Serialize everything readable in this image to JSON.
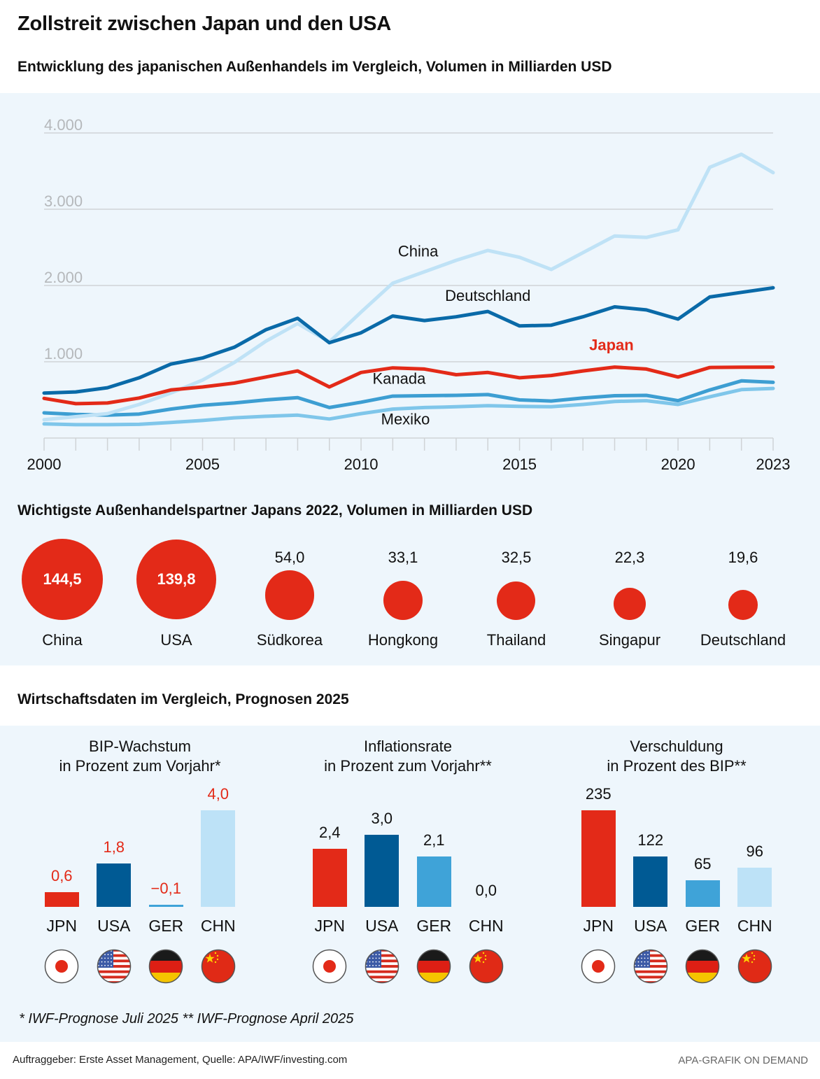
{
  "header": {
    "title": "Zollstreit zwischen Japan und den USA",
    "section1_title": "Entwicklung des japanischen Außenhandels im Vergleich, Volumen in Milliarden USD",
    "section2_title": "Wichtigste Außenhandelspartner Japans 2022, Volumen in Milliarden USD",
    "section3_title": "Wirtschaftsdaten im Vergleich, Prognosen 2025"
  },
  "colors": {
    "red": "#e32a18",
    "dark_blue": "#0a6aa8",
    "mid_blue": "#3d9ed2",
    "light_blue": "#7fc6ea",
    "pale_blue": "#bfe2f6",
    "bar_dark": "#005a94",
    "bar_mid": "#3fa3d8",
    "bar_pale": "#bde2f7",
    "panel_bg": "#eef6fc",
    "grid": "#cfd3d6",
    "axis_label": "#b5b8bb"
  },
  "chart_data": [
    {
      "type": "line",
      "title": "Entwicklung des japanischen Außenhandels im Vergleich, Volumen in Milliarden USD",
      "xlabel": "",
      "ylabel": "",
      "x": [
        2000,
        2001,
        2002,
        2003,
        2004,
        2005,
        2006,
        2007,
        2008,
        2009,
        2010,
        2011,
        2012,
        2013,
        2014,
        2015,
        2016,
        2017,
        2018,
        2019,
        2020,
        2021,
        2022,
        2023
      ],
      "x_tick_labels": [
        "2000",
        "2005",
        "2010",
        "2015",
        "2020",
        "2023"
      ],
      "x_ticks": [
        2000,
        2005,
        2010,
        2015,
        2020,
        2023
      ],
      "y_ticks": [
        1000,
        2000,
        3000,
        4000
      ],
      "y_tick_labels": [
        "1.000",
        "2.000",
        "3.000",
        "4.000"
      ],
      "ylim": [
        0,
        4000
      ],
      "grid": true,
      "series": [
        {
          "name": "China",
          "color": "#bfe2f6",
          "label_x": 2011.8,
          "label_y": 2380,
          "label_bold": false,
          "label_color": "#111111",
          "values": [
            240,
            280,
            320,
            440,
            590,
            760,
            990,
            1270,
            1500,
            1260,
            1650,
            2030,
            2180,
            2330,
            2460,
            2370,
            2210,
            2430,
            2650,
            2630,
            2730,
            3550,
            3720,
            3480
          ]
        },
        {
          "name": "Deutschland",
          "color": "#0a6aa8",
          "label_x": 2014.0,
          "label_y": 1800,
          "label_bold": false,
          "label_color": "#111111",
          "values": [
            590,
            605,
            660,
            790,
            970,
            1050,
            1190,
            1420,
            1570,
            1250,
            1380,
            1600,
            1540,
            1590,
            1660,
            1470,
            1480,
            1590,
            1720,
            1680,
            1560,
            1850,
            1910,
            1970
          ]
        },
        {
          "name": "Japan",
          "color": "#e32a18",
          "label_x": 2017.9,
          "label_y": 1150,
          "label_bold": true,
          "label_color": "#e32a18",
          "values": [
            520,
            450,
            460,
            525,
            630,
            670,
            720,
            800,
            880,
            670,
            860,
            920,
            905,
            830,
            860,
            790,
            820,
            880,
            930,
            905,
            800,
            925,
            928,
            930
          ]
        },
        {
          "name": "Kanada",
          "color": "#3d9ed2",
          "label_x": 2011.2,
          "label_y": 710,
          "label_bold": false,
          "label_color": "#111111",
          "values": [
            330,
            310,
            300,
            315,
            380,
            430,
            460,
            500,
            530,
            400,
            470,
            550,
            555,
            560,
            570,
            500,
            485,
            525,
            555,
            560,
            490,
            630,
            750,
            730
          ]
        },
        {
          "name": "Mexiko",
          "color": "#7fc6ea",
          "label_x": 2011.4,
          "label_y": 180,
          "label_bold": false,
          "label_color": "#111111",
          "values": [
            185,
            175,
            175,
            180,
            205,
            230,
            265,
            285,
            300,
            250,
            320,
            380,
            400,
            410,
            425,
            415,
            410,
            440,
            480,
            490,
            440,
            540,
            635,
            650
          ]
        }
      ]
    },
    {
      "type": "bubble",
      "title": "Wichtigste Außenhandelspartner Japans 2022, Volumen in Milliarden USD",
      "categories": [
        "China",
        "USA",
        "Südkorea",
        "Hongkong",
        "Thailand",
        "Singapur",
        "Deutschland"
      ],
      "values": [
        144.5,
        139.8,
        54.0,
        33.1,
        32.5,
        22.3,
        19.6
      ],
      "value_labels": [
        "144,5",
        "139,8",
        "54,0",
        "33,1",
        "32,5",
        "22,3",
        "19,6"
      ],
      "color": "#e32a18"
    },
    {
      "type": "bar",
      "title": "BIP-Wachstum",
      "subtitle": "in Prozent zum Vorjahr*",
      "categories": [
        "JPN",
        "USA",
        "GER",
        "CHN"
      ],
      "values": [
        0.6,
        1.8,
        -0.1,
        4.0
      ],
      "value_labels": [
        "0,6",
        "1,8",
        "−0,1",
        "4,0"
      ],
      "value_label_color": "#e32a18",
      "ylim": [
        0,
        4.0
      ]
    },
    {
      "type": "bar",
      "title": "Inflationsrate",
      "subtitle": "in Prozent zum Vorjahr**",
      "categories": [
        "JPN",
        "USA",
        "GER",
        "CHN"
      ],
      "values": [
        2.4,
        3.0,
        2.1,
        0.0
      ],
      "value_labels": [
        "2,4",
        "3,0",
        "2,1",
        "0,0"
      ],
      "value_label_color": "#111111",
      "ylim": [
        0,
        4.0
      ]
    },
    {
      "type": "bar",
      "title": "Verschuldung",
      "subtitle": "in Prozent des BIP**",
      "categories": [
        "JPN",
        "USA",
        "GER",
        "CHN"
      ],
      "values": [
        235,
        122,
        65,
        96
      ],
      "value_labels": [
        "235",
        "122",
        "65",
        "96"
      ],
      "value_label_color": "#111111",
      "ylim": [
        0,
        235
      ]
    }
  ],
  "flags": [
    "japan-flag",
    "usa-flag",
    "germany-flag",
    "china-flag"
  ],
  "footnote": "* IWF-Prognose Juli 2025   ** IWF-Prognose April 2025",
  "source": "Auftraggeber: Erste Asset Management, Quelle: APA/IWF/investing.com",
  "brand": "APA-GRAFIK ON DEMAND"
}
